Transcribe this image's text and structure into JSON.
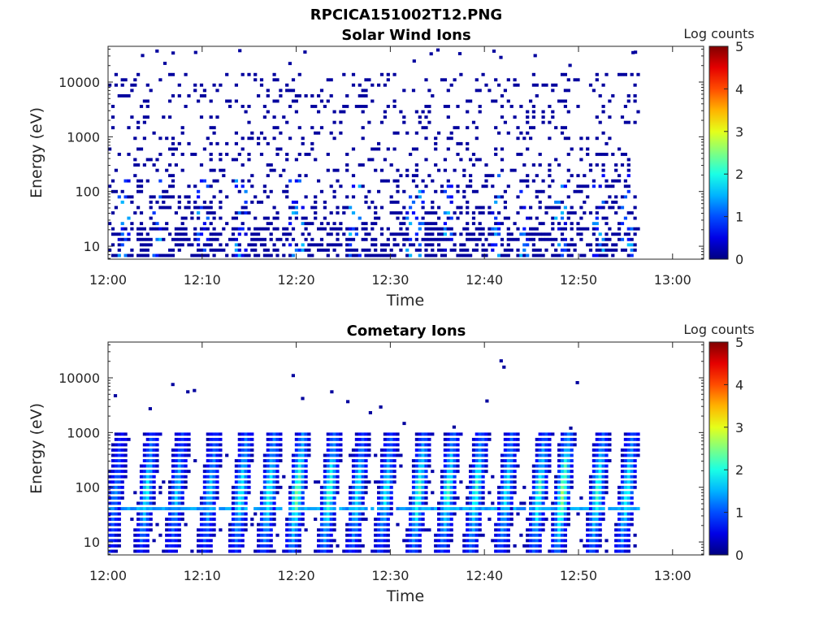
{
  "figure_title": "RPCICA151002T12.PNG",
  "chart_data": [
    {
      "type": "heatmap",
      "title": "Solar Wind Ions",
      "xlabel": "Time",
      "ylabel": "Energy (eV)",
      "x_ticks": [
        "12:00",
        "12:10",
        "12:20",
        "12:30",
        "12:40",
        "12:50",
        "13:00"
      ],
      "xlim_minutes": [
        0,
        63.3
      ],
      "data_end_minute": 56.5,
      "y_scale": "log",
      "ylim": [
        5.8,
        45000
      ],
      "y_ticks": [
        10,
        100,
        1000,
        10000
      ],
      "y_tick_labels": [
        "10",
        "100",
        "1000",
        "10000"
      ],
      "colorbar": {
        "label": "Log counts",
        "range": [
          0,
          5
        ],
        "ticks": [
          "0",
          "1",
          "2",
          "3",
          "4",
          "5"
        ],
        "colormap": "jet"
      },
      "description_values": {
        "dominant_log_counts": 0.2,
        "max_log_counts": 1.6,
        "sparse_noise_energy_range_eV": [
          20,
          15000
        ],
        "enhanced_low_energy_events_minutes": [
          1.5,
          5,
          10,
          14,
          19.5,
          20,
          26,
          32,
          33,
          36,
          41,
          44,
          48,
          52,
          55
        ]
      }
    },
    {
      "type": "heatmap",
      "title": "Cometary Ions",
      "xlabel": "Time",
      "ylabel": "Energy (eV)",
      "x_ticks": [
        "12:00",
        "12:10",
        "12:20",
        "12:30",
        "12:40",
        "12:50",
        "13:00"
      ],
      "xlim_minutes": [
        0,
        63.3
      ],
      "data_end_minute": 56.5,
      "y_scale": "log",
      "ylim": [
        5.8,
        45000
      ],
      "y_ticks": [
        10,
        100,
        1000,
        10000
      ],
      "y_tick_labels": [
        "10",
        "100",
        "1000",
        "10000"
      ],
      "colorbar": {
        "label": "Log counts",
        "range": [
          0,
          5
        ],
        "ticks": [
          "0",
          "1",
          "2",
          "3",
          "4",
          "5"
        ],
        "colormap": "jet"
      },
      "bursts_minutes": [
        0.5,
        3.8,
        7,
        10.5,
        13.8,
        16.8,
        19.8,
        23.2,
        26.2,
        29.2,
        32.7,
        35.8,
        38.8,
        42,
        45.5,
        48,
        51.7,
        54.8
      ],
      "burst_peak_log_counts": [
        1.3,
        1.9,
        1.6,
        1.7,
        2.0,
        2.1,
        2.6,
        2.3,
        1.9,
        1.9,
        2.3,
        2.2,
        2.2,
        1.9,
        2.2,
        2.7,
        2.3,
        2.1
      ],
      "burst_energy_range_eV": [
        6,
        900
      ],
      "steady_band_energy_eV": 42,
      "isolated_high_energy_points": [
        {
          "minute": 0.6,
          "energy": 4500
        },
        {
          "minute": 4.3,
          "energy": 2600
        },
        {
          "minute": 6.7,
          "energy": 7200
        },
        {
          "minute": 8.3,
          "energy": 5300
        },
        {
          "minute": 9.0,
          "energy": 5600
        },
        {
          "minute": 19.5,
          "energy": 10500
        },
        {
          "minute": 20.5,
          "energy": 4000
        },
        {
          "minute": 23.6,
          "energy": 5300
        },
        {
          "minute": 25.3,
          "energy": 3500
        },
        {
          "minute": 27.7,
          "energy": 2200
        },
        {
          "minute": 28.8,
          "energy": 2800
        },
        {
          "minute": 31.3,
          "energy": 1400
        },
        {
          "minute": 36.6,
          "energy": 1200
        },
        {
          "minute": 40.1,
          "energy": 3600
        },
        {
          "minute": 41.6,
          "energy": 19500
        },
        {
          "minute": 41.9,
          "energy": 15000
        },
        {
          "minute": 49.7,
          "energy": 7800
        },
        {
          "minute": 49.0,
          "energy": 1150
        }
      ]
    }
  ]
}
